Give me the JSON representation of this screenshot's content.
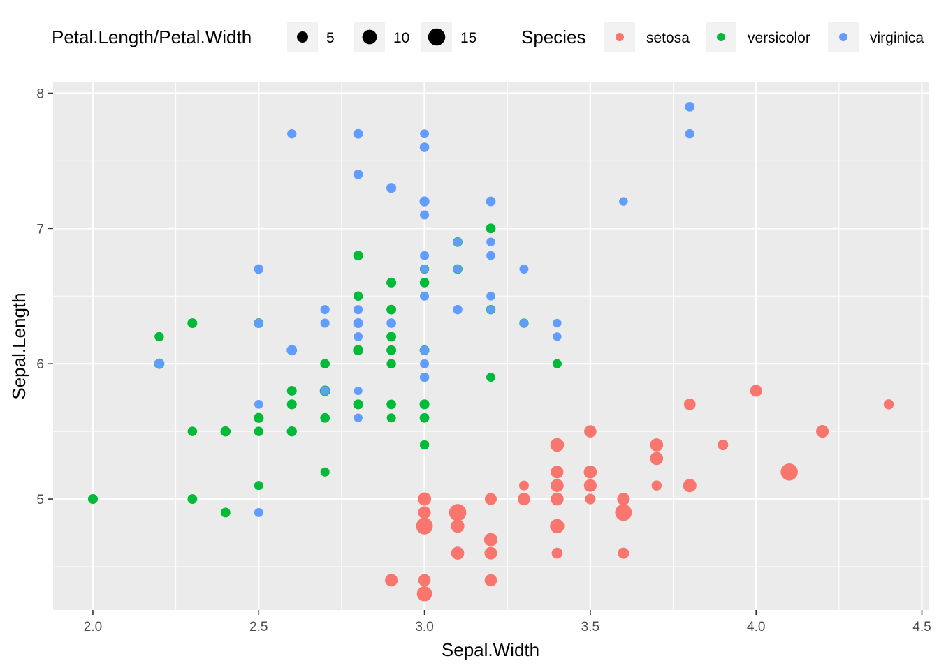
{
  "chart_data": {
    "type": "scatter",
    "title": "",
    "xlabel": "Sepal.Width",
    "ylabel": "Sepal.Length",
    "xlim": [
      1.88,
      4.52
    ],
    "ylim": [
      4.18,
      8.08
    ],
    "x_ticks": [
      "2.0",
      "2.5",
      "3.0",
      "3.5",
      "4.0",
      "4.5"
    ],
    "y_ticks": [
      "5",
      "6",
      "7",
      "8"
    ],
    "grid": true,
    "legend_position": "top",
    "legend": {
      "size_title": "Petal.Length/Petal.Width",
      "size_entries": [
        {
          "label": "5",
          "value": 5
        },
        {
          "label": "10",
          "value": 10
        },
        {
          "label": "15",
          "value": 15
        }
      ],
      "color_title": "Species",
      "color_entries": [
        {
          "label": "setosa",
          "color": "#F8766D"
        },
        {
          "label": "versicolor",
          "color": "#00BA38"
        },
        {
          "label": "virginica",
          "color": "#619CFF"
        }
      ]
    },
    "series": [
      {
        "name": "setosa",
        "color": "#F8766D",
        "points": [
          {
            "x": 3.5,
            "y": 5.1,
            "s": 7.0
          },
          {
            "x": 3.0,
            "y": 4.9,
            "s": 7.0
          },
          {
            "x": 3.2,
            "y": 4.7,
            "s": 6.5
          },
          {
            "x": 3.1,
            "y": 4.6,
            "s": 7.5
          },
          {
            "x": 3.6,
            "y": 5.0,
            "s": 7.0
          },
          {
            "x": 3.9,
            "y": 5.4,
            "s": 4.25
          },
          {
            "x": 3.4,
            "y": 4.6,
            "s": 4.67
          },
          {
            "x": 3.4,
            "y": 5.0,
            "s": 7.5
          },
          {
            "x": 2.9,
            "y": 4.4,
            "s": 7.0
          },
          {
            "x": 3.1,
            "y": 4.9,
            "s": 15.0
          },
          {
            "x": 3.7,
            "y": 5.4,
            "s": 7.5
          },
          {
            "x": 3.4,
            "y": 4.8,
            "s": 8.0
          },
          {
            "x": 3.0,
            "y": 4.8,
            "s": 14.0
          },
          {
            "x": 3.0,
            "y": 4.3,
            "s": 11.0
          },
          {
            "x": 4.0,
            "y": 5.8,
            "s": 6.0
          },
          {
            "x": 4.4,
            "y": 5.7,
            "s": 3.75
          },
          {
            "x": 3.9,
            "y": 5.4,
            "s": 3.25
          },
          {
            "x": 3.5,
            "y": 5.1,
            "s": 4.67
          },
          {
            "x": 3.8,
            "y": 5.7,
            "s": 5.67
          },
          {
            "x": 3.8,
            "y": 5.1,
            "s": 5.0
          },
          {
            "x": 3.4,
            "y": 5.4,
            "s": 8.5
          },
          {
            "x": 3.7,
            "y": 5.1,
            "s": 3.75
          },
          {
            "x": 3.6,
            "y": 4.6,
            "s": 5.0
          },
          {
            "x": 3.3,
            "y": 5.1,
            "s": 3.4
          },
          {
            "x": 3.4,
            "y": 4.8,
            "s": 9.5
          },
          {
            "x": 3.0,
            "y": 5.0,
            "s": 8.0
          },
          {
            "x": 3.4,
            "y": 5.0,
            "s": 4.0
          },
          {
            "x": 3.5,
            "y": 5.2,
            "s": 7.5
          },
          {
            "x": 3.4,
            "y": 5.2,
            "s": 7.0
          },
          {
            "x": 3.2,
            "y": 4.7,
            "s": 8.0
          },
          {
            "x": 3.1,
            "y": 4.8,
            "s": 8.0
          },
          {
            "x": 3.4,
            "y": 5.4,
            "s": 3.75
          },
          {
            "x": 4.1,
            "y": 5.2,
            "s": 15.0
          },
          {
            "x": 4.2,
            "y": 5.5,
            "s": 7.0
          },
          {
            "x": 3.1,
            "y": 4.9,
            "s": 7.5
          },
          {
            "x": 3.2,
            "y": 5.0,
            "s": 6.0
          },
          {
            "x": 3.5,
            "y": 5.5,
            "s": 6.5
          },
          {
            "x": 3.6,
            "y": 4.9,
            "s": 14.0
          },
          {
            "x": 3.0,
            "y": 4.4,
            "s": 6.5
          },
          {
            "x": 3.4,
            "y": 5.1,
            "s": 7.5
          },
          {
            "x": 3.5,
            "y": 5.0,
            "s": 4.33
          },
          {
            "x": 3.2,
            "y": 4.4,
            "s": 6.5
          },
          {
            "x": 3.5,
            "y": 5.0,
            "s": 2.5
          },
          {
            "x": 3.8,
            "y": 5.1,
            "s": 7.5
          },
          {
            "x": 3.0,
            "y": 4.8,
            "s": 4.67
          },
          {
            "x": 3.8,
            "y": 5.1,
            "s": 8.0
          },
          {
            "x": 3.2,
            "y": 4.6,
            "s": 7.0
          },
          {
            "x": 3.7,
            "y": 5.3,
            "s": 7.5
          },
          {
            "x": 3.3,
            "y": 5.0,
            "s": 7.0
          }
        ]
      },
      {
        "name": "versicolor",
        "color": "#00BA38",
        "points": [
          {
            "x": 3.2,
            "y": 7.0,
            "s": 3.36
          },
          {
            "x": 3.2,
            "y": 6.4,
            "s": 3.0
          },
          {
            "x": 3.1,
            "y": 6.9,
            "s": 3.27
          },
          {
            "x": 2.3,
            "y": 5.5,
            "s": 3.08
          },
          {
            "x": 2.8,
            "y": 6.5,
            "s": 3.07
          },
          {
            "x": 2.8,
            "y": 5.7,
            "s": 3.46
          },
          {
            "x": 3.3,
            "y": 6.3,
            "s": 2.94
          },
          {
            "x": 2.4,
            "y": 4.9,
            "s": 3.3
          },
          {
            "x": 2.9,
            "y": 6.6,
            "s": 3.46
          },
          {
            "x": 2.7,
            "y": 5.2,
            "s": 2.79
          },
          {
            "x": 2.0,
            "y": 5.0,
            "s": 3.5
          },
          {
            "x": 3.0,
            "y": 5.9,
            "s": 2.8
          },
          {
            "x": 2.2,
            "y": 6.0,
            "s": 4.0
          },
          {
            "x": 2.9,
            "y": 6.1,
            "s": 3.36
          },
          {
            "x": 2.9,
            "y": 5.6,
            "s": 2.77
          },
          {
            "x": 3.1,
            "y": 6.7,
            "s": 3.14
          },
          {
            "x": 3.0,
            "y": 5.6,
            "s": 3.0
          },
          {
            "x": 2.7,
            "y": 5.8,
            "s": 4.1
          },
          {
            "x": 2.2,
            "y": 6.2,
            "s": 3.0
          },
          {
            "x": 2.5,
            "y": 5.6,
            "s": 3.55
          },
          {
            "x": 3.2,
            "y": 5.9,
            "s": 2.67
          },
          {
            "x": 2.8,
            "y": 6.1,
            "s": 3.08
          },
          {
            "x": 2.5,
            "y": 6.3,
            "s": 3.27
          },
          {
            "x": 2.8,
            "y": 6.1,
            "s": 3.92
          },
          {
            "x": 2.9,
            "y": 6.4,
            "s": 3.31
          },
          {
            "x": 3.0,
            "y": 6.6,
            "s": 3.14
          },
          {
            "x": 2.8,
            "y": 6.8,
            "s": 3.43
          },
          {
            "x": 3.0,
            "y": 6.7,
            "s": 2.94
          },
          {
            "x": 2.9,
            "y": 6.0,
            "s": 3.0
          },
          {
            "x": 2.6,
            "y": 5.7,
            "s": 3.5
          },
          {
            "x": 2.4,
            "y": 5.5,
            "s": 3.45
          },
          {
            "x": 2.4,
            "y": 5.5,
            "s": 3.7
          },
          {
            "x": 2.7,
            "y": 5.8,
            "s": 3.25
          },
          {
            "x": 2.7,
            "y": 6.0,
            "s": 3.19
          },
          {
            "x": 3.0,
            "y": 5.4,
            "s": 3.0
          },
          {
            "x": 3.4,
            "y": 6.0,
            "s": 2.81
          },
          {
            "x": 3.1,
            "y": 6.7,
            "s": 3.13
          },
          {
            "x": 2.3,
            "y": 6.3,
            "s": 3.38
          },
          {
            "x": 3.0,
            "y": 5.6,
            "s": 3.15
          },
          {
            "x": 2.5,
            "y": 5.5,
            "s": 3.08
          },
          {
            "x": 2.6,
            "y": 5.5,
            "s": 3.67
          },
          {
            "x": 3.0,
            "y": 6.1,
            "s": 3.29
          },
          {
            "x": 2.6,
            "y": 5.8,
            "s": 3.33
          },
          {
            "x": 2.3,
            "y": 5.0,
            "s": 3.3
          },
          {
            "x": 2.7,
            "y": 5.6,
            "s": 3.23
          },
          {
            "x": 3.0,
            "y": 5.7,
            "s": 3.5
          },
          {
            "x": 2.9,
            "y": 5.7,
            "s": 3.23
          },
          {
            "x": 2.9,
            "y": 6.2,
            "s": 3.31
          },
          {
            "x": 2.5,
            "y": 5.1,
            "s": 2.73
          },
          {
            "x": 2.8,
            "y": 5.7,
            "s": 3.15
          }
        ]
      },
      {
        "name": "virginica",
        "color": "#619CFF",
        "points": [
          {
            "x": 3.3,
            "y": 6.3,
            "s": 2.4
          },
          {
            "x": 2.7,
            "y": 5.8,
            "s": 2.68
          },
          {
            "x": 3.0,
            "y": 7.1,
            "s": 2.81
          },
          {
            "x": 2.9,
            "y": 6.3,
            "s": 3.11
          },
          {
            "x": 3.0,
            "y": 6.5,
            "s": 2.64
          },
          {
            "x": 3.0,
            "y": 7.6,
            "s": 3.14
          },
          {
            "x": 2.5,
            "y": 4.9,
            "s": 2.65
          },
          {
            "x": 2.9,
            "y": 7.3,
            "s": 3.5
          },
          {
            "x": 2.5,
            "y": 6.7,
            "s": 3.22
          },
          {
            "x": 3.6,
            "y": 7.2,
            "s": 2.44
          },
          {
            "x": 3.2,
            "y": 6.5,
            "s": 2.55
          },
          {
            "x": 2.7,
            "y": 6.4,
            "s": 2.79
          },
          {
            "x": 3.0,
            "y": 6.8,
            "s": 2.62
          },
          {
            "x": 2.5,
            "y": 5.7,
            "s": 2.5
          },
          {
            "x": 2.8,
            "y": 5.8,
            "s": 2.13
          },
          {
            "x": 3.2,
            "y": 6.4,
            "s": 2.3
          },
          {
            "x": 3.0,
            "y": 6.5,
            "s": 2.78
          },
          {
            "x": 3.8,
            "y": 7.7,
            "s": 3.05
          },
          {
            "x": 2.6,
            "y": 7.7,
            "s": 2.96
          },
          {
            "x": 2.2,
            "y": 6.0,
            "s": 3.33
          },
          {
            "x": 3.2,
            "y": 6.9,
            "s": 2.48
          },
          {
            "x": 2.8,
            "y": 5.6,
            "s": 2.45
          },
          {
            "x": 2.8,
            "y": 7.7,
            "s": 3.35
          },
          {
            "x": 2.7,
            "y": 6.3,
            "s": 2.72
          },
          {
            "x": 3.3,
            "y": 6.7,
            "s": 2.71
          },
          {
            "x": 3.2,
            "y": 7.2,
            "s": 3.33
          },
          {
            "x": 2.8,
            "y": 6.2,
            "s": 2.67
          },
          {
            "x": 3.0,
            "y": 6.1,
            "s": 2.72
          },
          {
            "x": 2.8,
            "y": 6.4,
            "s": 2.67
          },
          {
            "x": 3.0,
            "y": 7.2,
            "s": 3.63
          },
          {
            "x": 2.8,
            "y": 7.4,
            "s": 3.21
          },
          {
            "x": 3.8,
            "y": 7.9,
            "s": 3.2
          },
          {
            "x": 2.8,
            "y": 6.4,
            "s": 2.55
          },
          {
            "x": 2.8,
            "y": 6.3,
            "s": 3.4
          },
          {
            "x": 2.6,
            "y": 6.1,
            "s": 4.0
          },
          {
            "x": 3.0,
            "y": 7.7,
            "s": 2.65
          },
          {
            "x": 3.4,
            "y": 6.3,
            "s": 2.33
          },
          {
            "x": 3.1,
            "y": 6.4,
            "s": 3.06
          },
          {
            "x": 3.0,
            "y": 6.0,
            "s": 2.67
          },
          {
            "x": 3.1,
            "y": 6.9,
            "s": 2.57
          },
          {
            "x": 3.1,
            "y": 6.7,
            "s": 2.33
          },
          {
            "x": 3.1,
            "y": 6.9,
            "s": 2.22
          },
          {
            "x": 2.7,
            "y": 5.8,
            "s": 2.68
          },
          {
            "x": 3.2,
            "y": 6.8,
            "s": 2.57
          },
          {
            "x": 3.3,
            "y": 6.7,
            "s": 2.28
          },
          {
            "x": 3.0,
            "y": 6.7,
            "s": 2.26
          },
          {
            "x": 2.5,
            "y": 6.3,
            "s": 2.63
          },
          {
            "x": 3.0,
            "y": 6.5,
            "s": 2.6
          },
          {
            "x": 3.4,
            "y": 6.2,
            "s": 2.35
          },
          {
            "x": 3.0,
            "y": 5.9,
            "s": 2.83
          }
        ]
      }
    ]
  }
}
